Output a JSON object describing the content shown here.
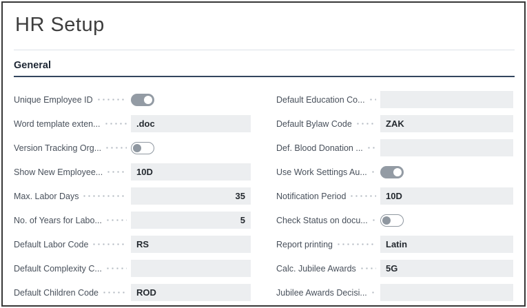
{
  "page": {
    "title": "HR Setup"
  },
  "section": {
    "title": "General"
  },
  "colors": {
    "window_border": "#363636",
    "section_underline": "#32455e",
    "field_background": "#eceef0",
    "toggle_on_track": "#939ba4",
    "label_text": "#48505b",
    "value_text": "#24292f"
  },
  "fields": {
    "left": [
      {
        "label": "Unique Employee ID",
        "control": "toggle",
        "state": "on"
      },
      {
        "label": "Word template exten...",
        "control": "text",
        "value": ".doc",
        "align": "left"
      },
      {
        "label": "Version Tracking Org...",
        "control": "toggle",
        "state": "off"
      },
      {
        "label": "Show New Employee...",
        "control": "text",
        "value": "10D",
        "align": "left"
      },
      {
        "label": "Max. Labor Days",
        "control": "text",
        "value": "35",
        "align": "right"
      },
      {
        "label": "No. of Years for Labo...",
        "control": "text",
        "value": "5",
        "align": "right"
      },
      {
        "label": "Default Labor Code",
        "control": "text",
        "value": "RS",
        "align": "left"
      },
      {
        "label": "Default Complexity C...",
        "control": "text",
        "value": "",
        "align": "left"
      },
      {
        "label": "Default Children Code",
        "control": "text",
        "value": "ROD",
        "align": "left"
      }
    ],
    "right": [
      {
        "label": "Default Education Co...",
        "control": "text",
        "value": "",
        "align": "left"
      },
      {
        "label": "Default Bylaw Code",
        "control": "text",
        "value": "ZAK",
        "align": "left"
      },
      {
        "label": "Def. Blood Donation ...",
        "control": "text",
        "value": "",
        "align": "left"
      },
      {
        "label": "Use Work Settings Au...",
        "control": "toggle",
        "state": "on"
      },
      {
        "label": "Notification Period",
        "control": "text",
        "value": "10D",
        "align": "left"
      },
      {
        "label": "Check Status on docu...",
        "control": "toggle",
        "state": "off"
      },
      {
        "label": "Report printing",
        "control": "text",
        "value": "Latin",
        "align": "left"
      },
      {
        "label": "Calc. Jubilee Awards",
        "control": "text",
        "value": "5G",
        "align": "left"
      },
      {
        "label": "Jubilee Awards Decisi...",
        "control": "text",
        "value": "",
        "align": "left"
      }
    ]
  }
}
